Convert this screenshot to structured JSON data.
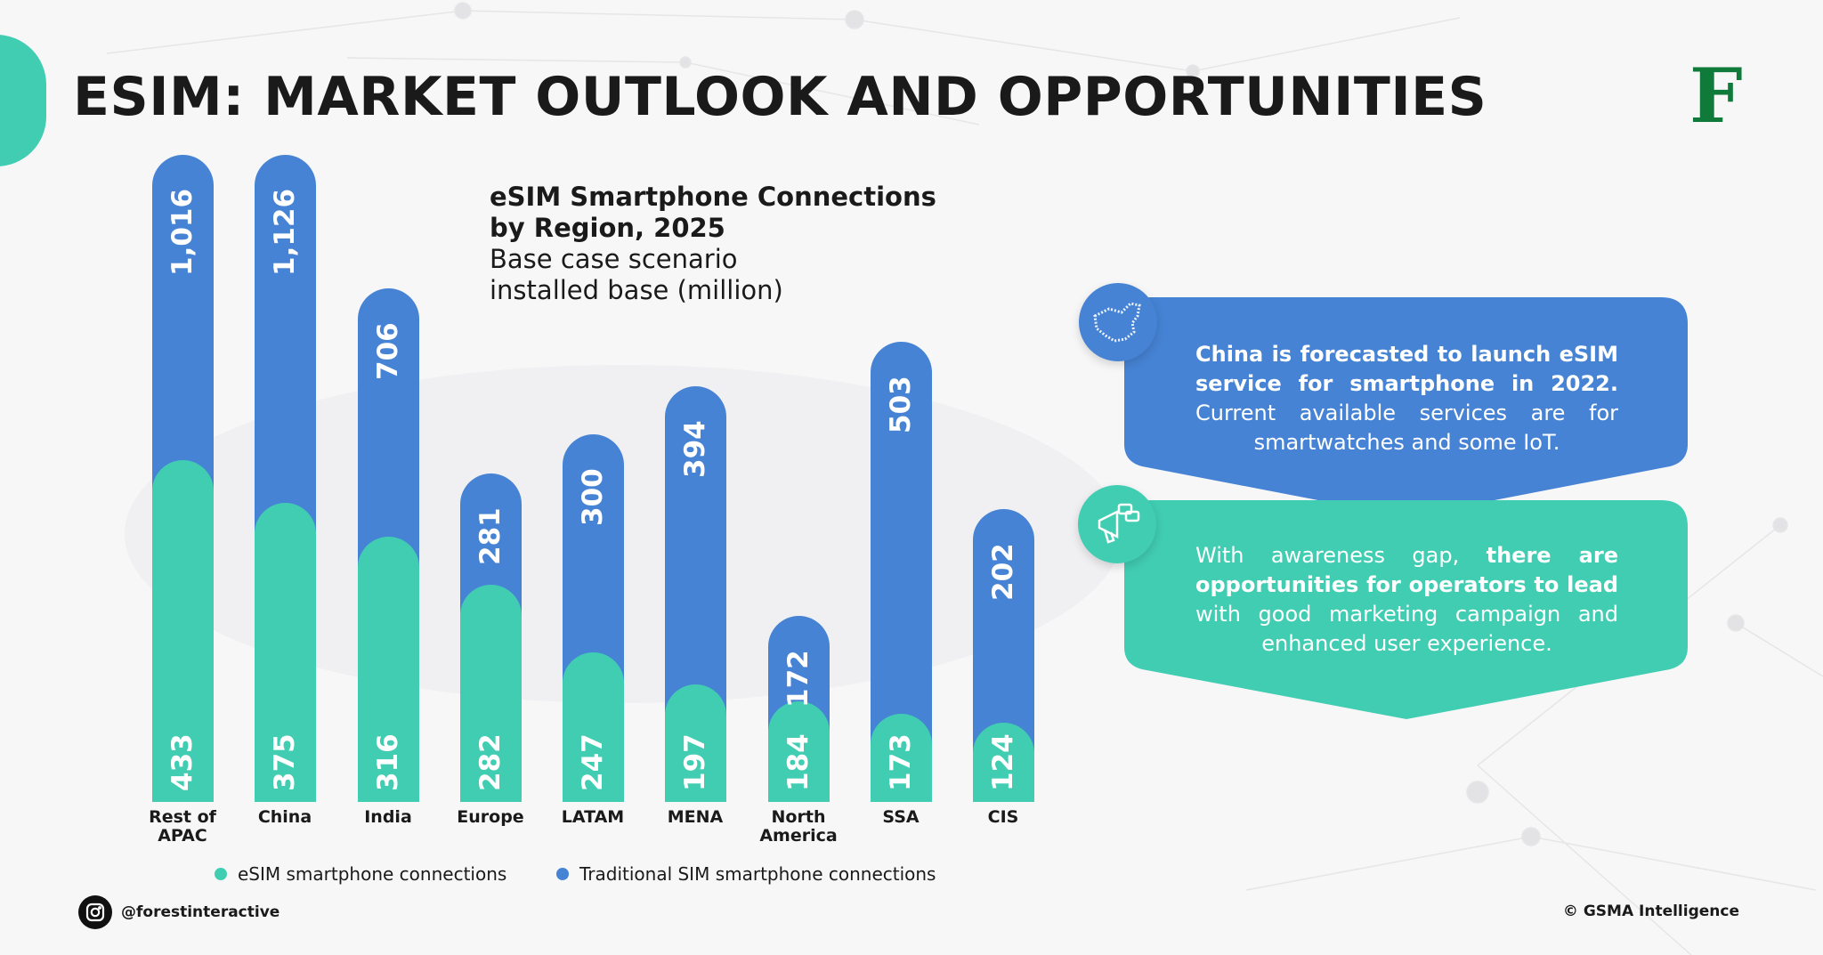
{
  "title": "ESIM: MARKET OUTLOOK AND OPPORTUNITIES",
  "logo": "F",
  "colors": {
    "esim": "#41cdb2",
    "traditional": "#4683d4",
    "logo": "#0f7a3a"
  },
  "chart_data": {
    "type": "bar",
    "stacked": true,
    "title": "eSIM Smartphone Connections by Region, 2025",
    "title_lines": [
      "eSIM Smartphone Connections",
      "by Region, 2025"
    ],
    "subtitle_lines": [
      "Base case scenario",
      "installed base (million)"
    ],
    "categories": [
      "Rest of APAC",
      "China",
      "India",
      "Europe",
      "LATAM",
      "MENA",
      "North America",
      "SSA",
      "CIS"
    ],
    "category_lines": [
      [
        "Rest of",
        "APAC"
      ],
      [
        "China"
      ],
      [
        "India"
      ],
      [
        "Europe"
      ],
      [
        "LATAM"
      ],
      [
        "MENA"
      ],
      [
        "North",
        "America"
      ],
      [
        "SSA"
      ],
      [
        "CIS"
      ]
    ],
    "series": [
      {
        "name": "eSIM smartphone connections",
        "values": [
          433,
          375,
          316,
          282,
          247,
          197,
          184,
          173,
          124
        ],
        "labels": [
          "433",
          "375",
          "316",
          "282",
          "247",
          "197",
          "184",
          "173",
          "124"
        ]
      },
      {
        "name": "Traditional SIM smartphone connections",
        "values": [
          1016,
          1126,
          706,
          281,
          300,
          394,
          172,
          503,
          202
        ],
        "labels": [
          "1,016",
          "1,126",
          "706",
          "281",
          "300",
          "394",
          "172",
          "503",
          "202"
        ]
      }
    ],
    "legend": "bottom",
    "grid": false
  },
  "cards": [
    {
      "icon": "china-map-icon",
      "bold": "China is forecasted to launch eSIM service for smartphone in 2022.",
      "normal": " Current available services are for smartwatches and some IoT."
    },
    {
      "icon": "megaphone-icon",
      "pre": "With awareness gap, ",
      "bold": "there are opportunities for operators to lead",
      "normal": " with good marketing campaign and enhanced user experience."
    }
  ],
  "footer": {
    "social": "@forestinteractive",
    "source": "© GSMA Intelligence"
  }
}
